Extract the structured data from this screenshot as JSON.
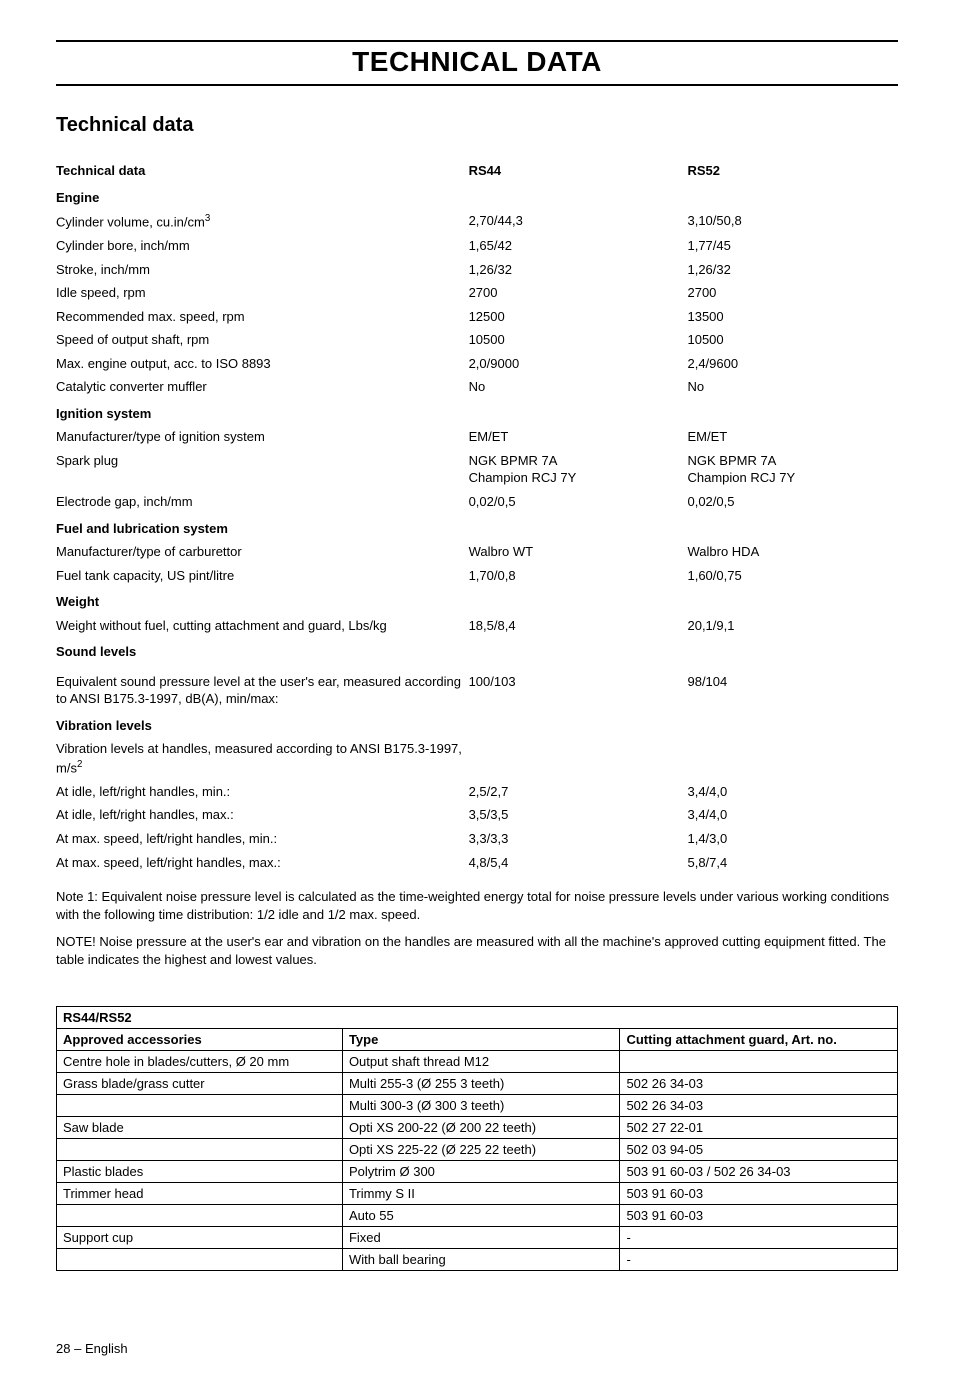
{
  "page_title": "TECHNICAL DATA",
  "section_title": "Technical data",
  "spec": {
    "header": {
      "label": "Technical data",
      "col_a": "RS44",
      "col_b": "RS52"
    },
    "engine_header": "Engine",
    "rows_engine": [
      {
        "label_pre": "Cylinder volume,  cu.in/cm",
        "label_sup": "3",
        "a": "2,70/44,3",
        "b": "3,10/50,8"
      },
      {
        "label": "Cylinder bore,   inch/mm",
        "a": "1,65/42",
        "b": "1,77/45"
      },
      {
        "label": "Stroke,  inch/mm",
        "a": "1,26/32",
        "b": "1,26/32"
      },
      {
        "label": "Idle speed, rpm",
        "a": "2700",
        "b": "2700"
      },
      {
        "label": "Recommended max. speed, rpm",
        "a": "12500",
        "b": "13500"
      },
      {
        "label": "Speed of output shaft, rpm",
        "a": "10500",
        "b": "10500"
      },
      {
        "label": "Max. engine output, acc. to ISO 8893",
        "a": "2,0/9000",
        "b": "2,4/9600"
      },
      {
        "label": "Catalytic converter muffler",
        "a": "No",
        "b": "No"
      }
    ],
    "ignition_header": "Ignition system",
    "rows_ignition": [
      {
        "label": "Manufacturer/type of ignition system",
        "a": "EM/ET",
        "b": "EM/ET"
      },
      {
        "label": "Spark plug",
        "a": "NGK BPMR 7A\nChampion RCJ 7Y",
        "b": "NGK BPMR 7A\nChampion RCJ 7Y"
      },
      {
        "label": "Electrode gap, inch/mm",
        "a": "0,02/0,5",
        "b": "0,02/0,5"
      }
    ],
    "fuel_header": "Fuel and lubrication system",
    "rows_fuel": [
      {
        "label": "Manufacturer/type of carburettor",
        "a": "Walbro WT",
        "b": "Walbro HDA"
      },
      {
        "label": "Fuel tank capacity, US pint/litre",
        "a": "1,70/0,8",
        "b": "1,60/0,75"
      }
    ],
    "weight_header": "Weight",
    "rows_weight": [
      {
        "label": "Weight without fuel, cutting attachment and guard, Lbs/kg",
        "a": "18,5/8,4",
        "b": "20,1/9,1"
      }
    ],
    "sound_header": "Sound levels",
    "rows_sound": [
      {
        "label": "Equivalent sound pressure level at the user's ear, measured according to ANSI  B175.3-1997, dB(A), min/max:",
        "a": "100/103",
        "b": "98/104"
      }
    ],
    "vibration_header": "Vibration levels",
    "vibration_intro_pre": "Vibration levels at handles, measured according to ANSI B175.3-1997, m/s",
    "vibration_intro_sup": "2",
    "rows_vibration": [
      {
        "label": "At idle, left/right handles, min.:",
        "a": "2,5/2,7",
        "b": "3,4/4,0"
      },
      {
        "label": "At idle, left/right handles, max.:",
        "a": "3,5/3,5",
        "b": "3,4/4,0"
      },
      {
        "label": "At max. speed, left/right handles, min.:",
        "a": "3,3/3,3",
        "b": "1,4/3,0"
      },
      {
        "label": "At max. speed, left/right handles, max.:",
        "a": "4,8/5,4",
        "b": "5,8/7,4"
      }
    ]
  },
  "notes": [
    "Note 1: Equivalent noise pressure level is calculated as the time-weighted energy total for noise pressure levels under various working conditions with the following time distribution: 1/2 idle and 1/2 max. speed.",
    "NOTE! Noise pressure at the user's ear and vibration on the handles are measured with all the machine's approved cutting equipment fitted. The table indicates the highest and lowest values."
  ],
  "accessories": {
    "title": "RS44/RS52",
    "columns": [
      "Approved accessories",
      "Type",
      "Cutting attachment guard, Art. no."
    ],
    "rows": [
      [
        "Centre hole in blades/cutters, Ø 20 mm",
        "Output shaft thread M12",
        ""
      ],
      [
        "Grass blade/grass cutter",
        "Multi 255-3 (Ø 255 3 teeth)",
        "502 26 34-03"
      ],
      [
        "",
        "Multi 300-3 (Ø 300 3 teeth)",
        "502 26 34-03"
      ],
      [
        "Saw blade",
        "Opti XS 200-22 (Ø 200 22 teeth)",
        "502 27 22-01"
      ],
      [
        "",
        "Opti XS 225-22 (Ø 225 22 teeth)",
        "502 03 94-05"
      ],
      [
        "Plastic blades",
        "Polytrim Ø 300",
        "503 91 60-03 / 502 26 34-03"
      ],
      [
        "Trimmer head",
        "Trimmy S II",
        "503 91 60-03"
      ],
      [
        "",
        "Auto 55",
        "503 91 60-03"
      ],
      [
        "Support cup",
        "Fixed",
        "-"
      ],
      [
        "",
        "With ball bearing",
        "-"
      ]
    ]
  },
  "footer_page": "28",
  "footer_dash": " – ",
  "footer_lang": "English"
}
